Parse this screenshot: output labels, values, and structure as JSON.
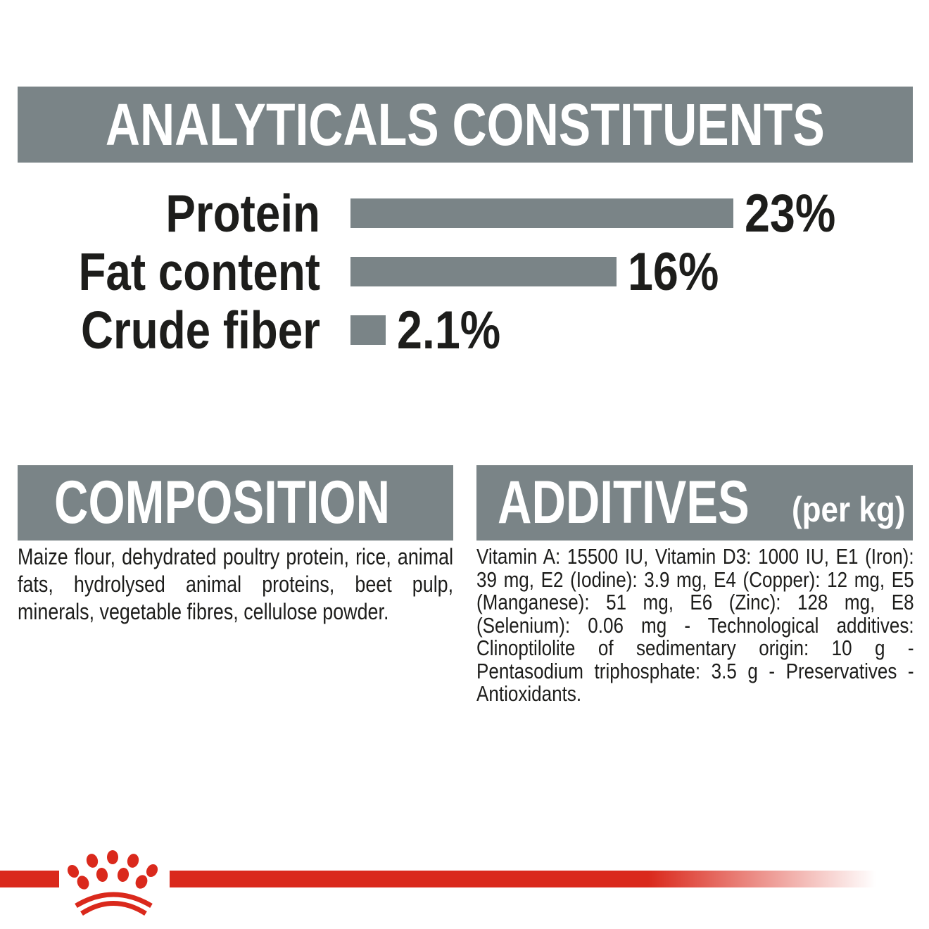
{
  "colors": {
    "section_bg": "#7a8487",
    "bar_fill": "#7a8487",
    "text": "#1d1d1b",
    "title_text": "#ffffff",
    "brand_red": "#da291c",
    "background": "#ffffff"
  },
  "analyticals": {
    "title": "ANALYTICALS CONSTITUENTS"
  },
  "chart_data": {
    "type": "bar",
    "orientation": "horizontal",
    "title": "ANALYTICALS CONSTITUENTS",
    "categories": [
      "Protein",
      "Fat content",
      "Crude fiber"
    ],
    "values": [
      23,
      16,
      2.1
    ],
    "value_labels": [
      "23%",
      "16%",
      "2.1%"
    ],
    "unit": "%",
    "xlim": [
      0,
      23
    ],
    "bar_color": "#7a8487",
    "grid": false,
    "legend": false,
    "value_label_position": "right-of-bar"
  },
  "composition": {
    "title": "COMPOSITION",
    "body": "Maize flour, dehydrated poultry protein, rice, animal fats, hydrolysed animal proteins, beet pulp, minerals, vegetable fibres, cellulose powder."
  },
  "additives": {
    "title": "ADDITIVES",
    "unit_note": "(per kg)",
    "body": "Vitamin A: 15500 IU, Vitamin D3: 1000 IU, E1 (Iron): 39 mg, E2 (Iodine): 3.9 mg, E4 (Copper): 12 mg, E5 (Manganese): 51 mg, E6 (Zinc): 128 mg, E8 (Selenium): 0.06 mg - Technological additives: Clinoptilolite of sedimentary origin: 10 g - Pentasodium triphosphate: 3.5 g - Preservatives - Antioxidants."
  },
  "footer": {
    "logo": "royal-canin-crown"
  }
}
